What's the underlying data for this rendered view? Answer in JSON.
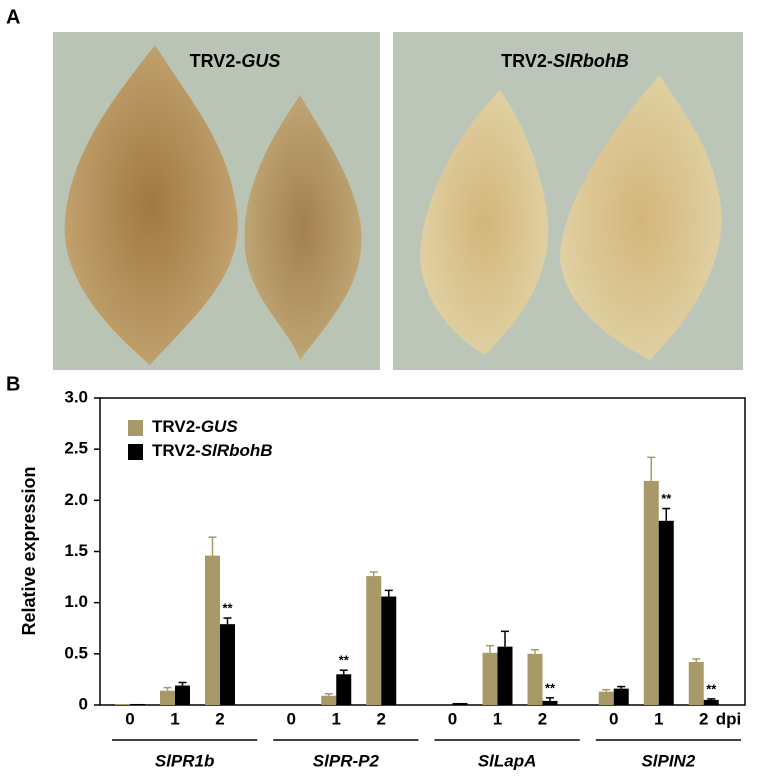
{
  "panel_a": {
    "label": "A",
    "images": [
      {
        "caption": "TRV2-GUS"
      },
      {
        "caption": "TRV2-SlRbohB"
      }
    ]
  },
  "chart_data": {
    "type": "bar",
    "panel_label": "B",
    "y_label": "Relative expression",
    "categories": [
      "0",
      "1",
      "2",
      "0",
      "1",
      "2",
      "0",
      "1",
      "2",
      "0",
      "1",
      "2"
    ],
    "x_unit": "dpi",
    "groups": [
      "SlPR1b",
      "SlPR-P2",
      "SlLapA",
      "SlPIN2"
    ],
    "series": [
      {
        "name": "TRV2-GUS",
        "color": "#a89a68",
        "values": [
          0.01,
          0.14,
          1.46,
          0,
          0.09,
          1.26,
          0,
          0.51,
          0.5,
          0.13,
          2.19,
          0.42
        ],
        "errors": [
          0,
          0.03,
          0.18,
          0,
          0.02,
          0.04,
          0,
          0.07,
          0.04,
          0.02,
          0.23,
          0.03
        ],
        "annotations": [
          null,
          null,
          null,
          null,
          null,
          null,
          null,
          null,
          null,
          null,
          null,
          null
        ]
      },
      {
        "name": "TRV2-SlRbohB",
        "color": "#000000",
        "values": [
          0.01,
          0.19,
          0.79,
          0,
          0.3,
          1.06,
          0.02,
          0.57,
          0.04,
          0.16,
          1.8,
          0.05
        ],
        "errors": [
          0,
          0.03,
          0.06,
          0,
          0.04,
          0.06,
          0,
          0.15,
          0.03,
          0.02,
          0.12,
          0.01
        ],
        "annotations": [
          null,
          null,
          "**",
          null,
          "**",
          null,
          null,
          null,
          "**",
          null,
          "**",
          "**"
        ]
      }
    ],
    "ylim": [
      0,
      3
    ],
    "yticks": [
      0,
      0.5,
      {
        "value": 1,
        "label": "1.0"
      },
      {
        "value": 1.5,
        "label": "1.5"
      },
      {
        "value": 2,
        "label": "2.0"
      },
      {
        "value": 2.5,
        "label": "2.5"
      },
      {
        "value": 3,
        "label": "3.0"
      }
    ]
  }
}
